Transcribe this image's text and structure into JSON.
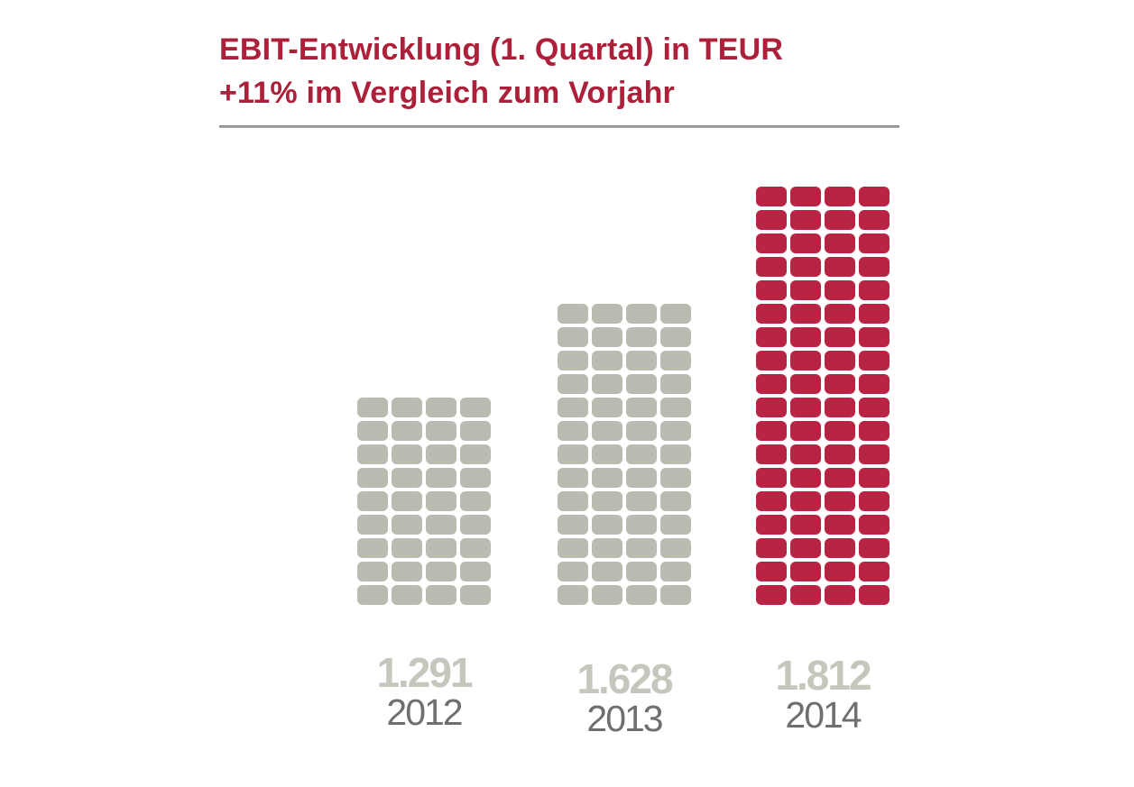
{
  "header": {
    "title_line1": "EBIT-Entwicklung (1. Quartal) in TEUR",
    "title_line2": "+11% im Vergleich zum Vorjahr"
  },
  "colors": {
    "brand_red_title": "#ad2039",
    "brand_red_blocks": "#b82443",
    "block_gray": "#b9bcb1",
    "value_text": "#c6c7bc",
    "year_text": "#6e706e",
    "divider_gray": "#8a8a8a",
    "background": "#ffffff"
  },
  "chart_data": {
    "type": "bar",
    "variant": "pictogram-waffle",
    "title": "EBIT-Entwicklung (1. Quartal) in TEUR",
    "subtitle": "+11% im Vergleich zum Vorjahr",
    "unit": "TEUR",
    "comparison_note": "+11% im Vergleich zum Vorjahr",
    "legend": "none",
    "axes_visible": false,
    "gridlines": false,
    "categories": [
      "2012",
      "2013",
      "2014"
    ],
    "values": [
      1291,
      1628,
      1812
    ],
    "bars": [
      {
        "year": "2012",
        "value": 1291,
        "value_label": "1.291",
        "block_rows": 9,
        "block_cols": 4,
        "color": "#b9bcb1",
        "highlight": false
      },
      {
        "year": "2013",
        "value": 1628,
        "value_label": "1.628",
        "block_rows": 13,
        "block_cols": 4,
        "color": "#b9bcb1",
        "highlight": false
      },
      {
        "year": "2014",
        "value": 1812,
        "value_label": "1.812",
        "block_rows": 18,
        "block_cols": 4,
        "color": "#b82443",
        "highlight": true
      }
    ]
  }
}
